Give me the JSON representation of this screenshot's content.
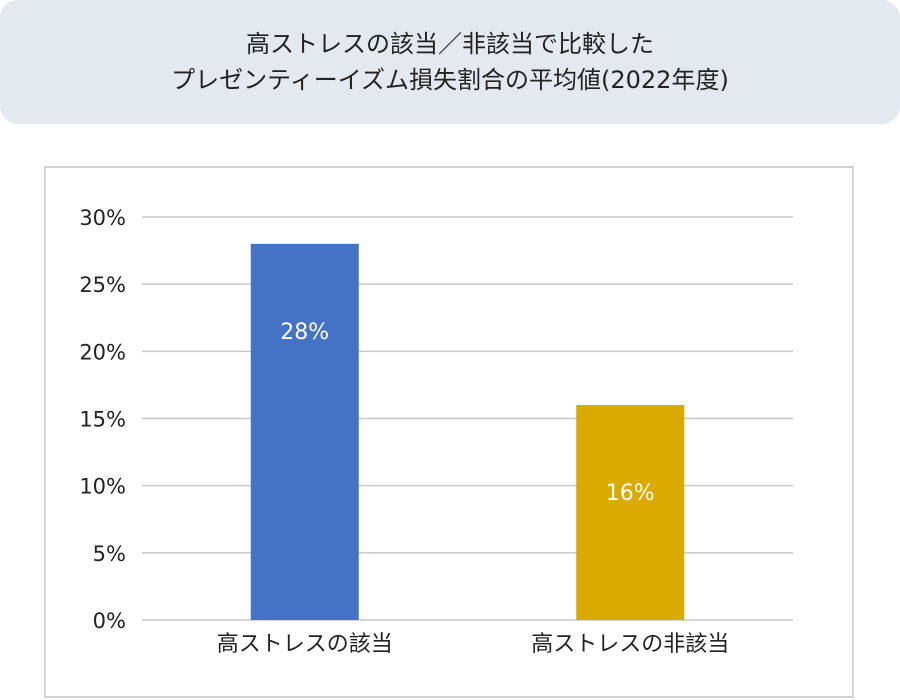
{
  "title": {
    "line1": "高ストレスの該当／非該当で比較した",
    "line2": "プレゼンティーイズム損失割合の平均値(2022年度)"
  },
  "chart_data": {
    "type": "bar",
    "categories": [
      "高ストレスの該当",
      "高ストレスの非該当"
    ],
    "values": [
      28,
      16
    ],
    "value_labels": [
      "28%",
      "16%"
    ],
    "colors": [
      "#4472c4",
      "#dbaa00"
    ],
    "ylim": [
      0,
      30
    ],
    "yticks": [
      0,
      5,
      10,
      15,
      20,
      25,
      30
    ],
    "ytick_labels": [
      "0%",
      "5%",
      "10%",
      "15%",
      "20%",
      "25%",
      "30%"
    ],
    "grid": true,
    "xlabel": "",
    "ylabel": ""
  }
}
